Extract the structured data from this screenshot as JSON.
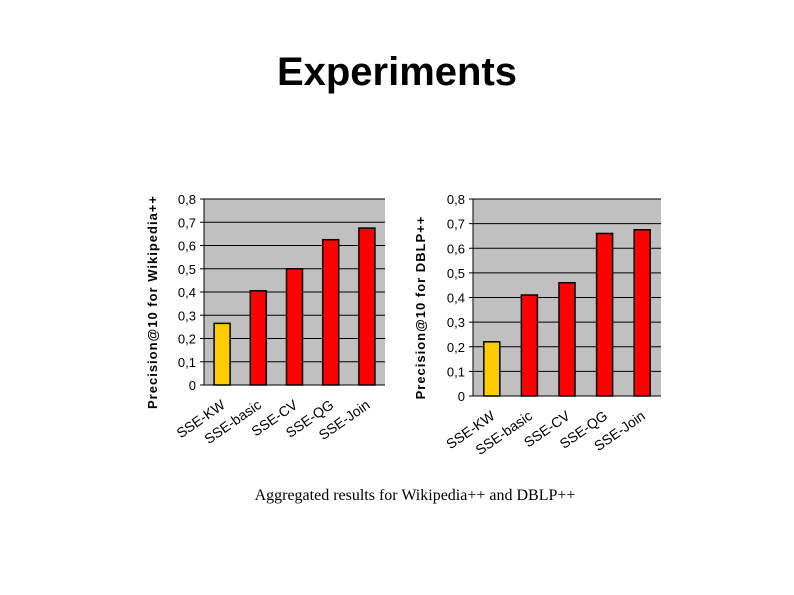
{
  "slide": {
    "title": "Experiments",
    "caption": "Aggregated results for Wikipedia++ and DBLP++"
  },
  "colors": {
    "bar": "#ff0000",
    "bar_highlight": "#ffcc00",
    "plot_bg": "#c0c0c0",
    "grid": "#000000"
  },
  "chart_data": [
    {
      "type": "bar",
      "categories": [
        "SSE-KW",
        "SSE-basic",
        "SSE-CV",
        "SSE-QG",
        "SSE-Join"
      ],
      "values": [
        0.265,
        0.405,
        0.5,
        0.625,
        0.675
      ],
      "highlight_index": 0,
      "ylabel": "Precision@10 for Wikipedia++",
      "xlabel": "",
      "ylim": [
        0,
        0.8
      ],
      "yticks": [
        "0",
        "0,1",
        "0,2",
        "0,3",
        "0,4",
        "0,5",
        "0,6",
        "0,7",
        "0,8"
      ],
      "grid": true
    },
    {
      "type": "bar",
      "categories": [
        "SSE-KW",
        "SSE-basic",
        "SSE-CV",
        "SSE-QG",
        "SSE-Join"
      ],
      "values": [
        0.22,
        0.41,
        0.46,
        0.66,
        0.675
      ],
      "highlight_index": 0,
      "ylabel": "Precision@10 for DBLP++",
      "xlabel": "",
      "ylim": [
        0,
        0.8
      ],
      "yticks": [
        "0",
        "0,1",
        "0,2",
        "0,3",
        "0,4",
        "0,5",
        "0,6",
        "0,7",
        "0,8"
      ],
      "grid": true
    }
  ]
}
